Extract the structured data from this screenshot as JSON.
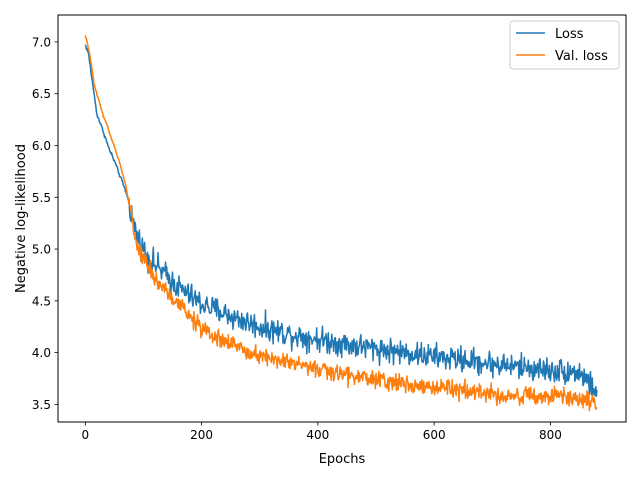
{
  "chart_data": {
    "type": "line",
    "title": "",
    "xlabel": "Epochs",
    "ylabel": "Negative log-likelihood",
    "xlim": [
      -47,
      930
    ],
    "ylim": [
      3.33,
      7.26
    ],
    "xticks": [
      0,
      200,
      400,
      600,
      800
    ],
    "yticks": [
      3.5,
      4.0,
      4.5,
      5.0,
      5.5,
      6.0,
      6.5,
      7.0
    ],
    "grid": false,
    "legend": {
      "location": "top-right",
      "entries": [
        "Loss",
        "Val. loss"
      ]
    },
    "series": [
      {
        "name": "Loss",
        "color": "#1f77b4",
        "noise": 0.075,
        "x": [
          0,
          5,
          10,
          15,
          20,
          30,
          40,
          50,
          60,
          70,
          76,
          85,
          95,
          105,
          120,
          140,
          160,
          180,
          200,
          230,
          260,
          300,
          350,
          400,
          450,
          500,
          550,
          600,
          650,
          700,
          750,
          800,
          850,
          880
        ],
        "y": [
          6.97,
          6.9,
          6.7,
          6.5,
          6.3,
          6.15,
          5.98,
          5.85,
          5.7,
          5.55,
          5.43,
          5.2,
          5.05,
          4.95,
          4.85,
          4.74,
          4.63,
          4.55,
          4.47,
          4.4,
          4.33,
          4.25,
          4.18,
          4.13,
          4.08,
          4.04,
          4.0,
          3.96,
          3.93,
          3.89,
          3.86,
          3.83,
          3.81,
          3.62
        ]
      },
      {
        "name": "Val. loss",
        "color": "#ff7f0e",
        "noise": 0.055,
        "x": [
          0,
          5,
          10,
          15,
          20,
          30,
          40,
          50,
          60,
          70,
          76,
          85,
          95,
          105,
          120,
          140,
          160,
          180,
          200,
          230,
          260,
          300,
          350,
          400,
          450,
          500,
          550,
          600,
          650,
          700,
          750,
          800,
          850,
          880
        ],
        "y": [
          7.06,
          6.95,
          6.8,
          6.6,
          6.5,
          6.3,
          6.15,
          5.98,
          5.82,
          5.6,
          5.42,
          5.12,
          4.95,
          4.85,
          4.72,
          4.58,
          4.47,
          4.35,
          4.23,
          4.13,
          4.06,
          3.98,
          3.9,
          3.84,
          3.78,
          3.74,
          3.7,
          3.66,
          3.64,
          3.6,
          3.58,
          3.57,
          3.56,
          3.52
        ]
      }
    ]
  }
}
